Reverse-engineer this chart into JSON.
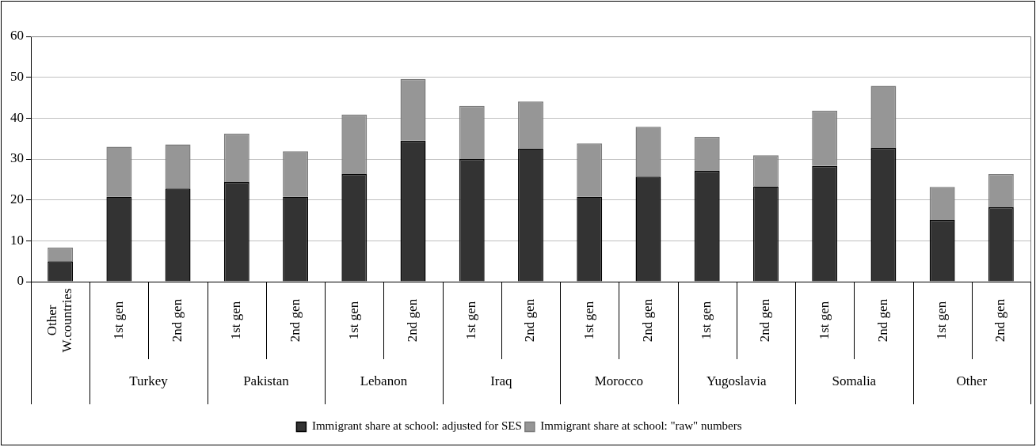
{
  "chart_data": {
    "type": "bar",
    "stacked": true,
    "categories": [
      "Other W.countries",
      "1st gen",
      "2nd gen",
      "1st gen",
      "2nd gen",
      "1st gen",
      "2nd gen",
      "1st gen",
      "2nd gen",
      "1st gen",
      "2nd gen",
      "1st gen",
      "2nd gen",
      "1st gen",
      "2nd gen",
      "1st gen",
      "2nd gen"
    ],
    "annotations": [
      "Turkey",
      "Pakistan",
      "Lebanon",
      "Iraq",
      "Morocco",
      "Yugoslavia",
      "Somalia",
      "Other"
    ],
    "series": [
      {
        "name": "Immigrant share at school: adjusted for SES",
        "color": "#333333",
        "values": [
          5,
          20.8,
          22.8,
          24.4,
          20.8,
          26.3,
          34.5,
          30,
          32.6,
          20.8,
          25.7,
          27.1,
          23.3,
          28.3,
          32.7,
          15.1,
          18.2
        ]
      },
      {
        "name": "Immigrant share at school: \"raw\" numbers",
        "color": "#969696",
        "values": [
          3.3,
          12.2,
          10.8,
          11.8,
          11.1,
          14.6,
          15.1,
          13,
          11.5,
          13,
          12.2,
          8.3,
          7.6,
          13.5,
          15.2,
          8.1,
          8.1
        ]
      }
    ],
    "ylim": [
      0,
      60
    ],
    "yticks": [
      0,
      10,
      20,
      30,
      40,
      50,
      60
    ],
    "grid": "y",
    "legend": "bottom"
  }
}
